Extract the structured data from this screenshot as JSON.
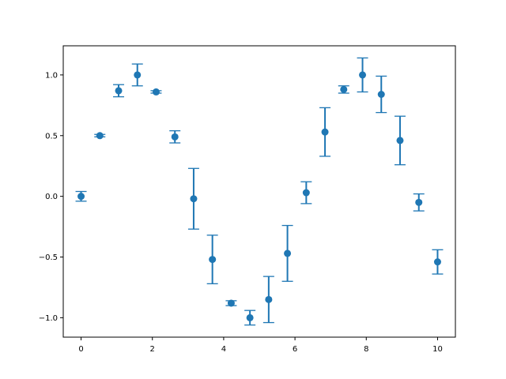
{
  "chart_data": {
    "type": "scatter",
    "title": "",
    "xlabel": "",
    "ylabel": "",
    "xlim": [
      -0.5,
      10.5
    ],
    "ylim": [
      -1.16,
      1.24
    ],
    "x_ticks": [
      0,
      2,
      4,
      6,
      8,
      10
    ],
    "x_tick_labels": [
      "0",
      "2",
      "4",
      "6",
      "8",
      "10"
    ],
    "y_ticks": [
      -1.0,
      -0.5,
      0.0,
      0.5,
      1.0
    ],
    "y_tick_labels": [
      "−1.0",
      "−0.5",
      "0.0",
      "0.5",
      "1.0"
    ],
    "grid": false,
    "legend": "none",
    "colors": {
      "series": "#1f77b4",
      "axes": "#000000",
      "background": "#ffffff"
    },
    "series": [
      {
        "x": [
          0.0,
          0.526,
          1.053,
          1.579,
          2.105,
          2.632,
          3.158,
          3.684,
          4.211,
          4.737,
          5.263,
          5.789,
          6.316,
          6.842,
          7.368,
          7.895,
          8.421,
          8.947,
          9.474,
          10.0
        ],
        "y": [
          0.0,
          0.5,
          0.87,
          1.0,
          0.86,
          0.49,
          -0.02,
          -0.52,
          -0.88,
          -1.0,
          -0.85,
          -0.47,
          0.03,
          0.53,
          0.88,
          1.0,
          0.84,
          0.46,
          -0.05,
          -0.54
        ],
        "yerr": [
          0.04,
          0.01,
          0.05,
          0.09,
          0.01,
          0.05,
          0.25,
          0.2,
          0.02,
          0.06,
          0.19,
          0.23,
          0.09,
          0.2,
          0.03,
          0.14,
          0.15,
          0.2,
          0.07,
          0.1
        ]
      }
    ]
  }
}
